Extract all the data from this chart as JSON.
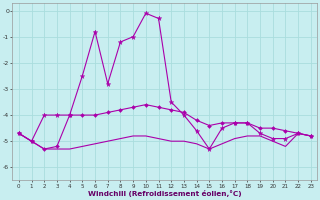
{
  "x": [
    0,
    1,
    2,
    3,
    4,
    5,
    6,
    7,
    8,
    9,
    10,
    11,
    12,
    13,
    14,
    15,
    16,
    17,
    18,
    19,
    20,
    21,
    22,
    23
  ],
  "line1": [
    -4.7,
    -5.0,
    -4.0,
    -4.0,
    -4.0,
    -2.5,
    -0.8,
    -2.8,
    -1.2,
    -1.0,
    -0.1,
    -0.3,
    -3.5,
    -4.0,
    -4.6,
    -5.3,
    -4.5,
    -4.3,
    -4.3,
    -4.7,
    -4.9,
    -4.9,
    -4.7,
    -4.8
  ],
  "line2": [
    -4.7,
    -5.0,
    -5.3,
    -5.2,
    -4.0,
    -4.0,
    -4.0,
    -3.9,
    -3.8,
    -3.7,
    -3.6,
    -3.7,
    -3.8,
    -3.9,
    -4.2,
    -4.4,
    -4.3,
    -4.3,
    -4.3,
    -4.5,
    -4.5,
    -4.6,
    -4.7,
    -4.8
  ],
  "line3": [
    -4.7,
    -5.0,
    -5.3,
    -5.3,
    -5.3,
    -5.2,
    -5.1,
    -5.0,
    -4.9,
    -4.8,
    -4.8,
    -4.9,
    -5.0,
    -5.0,
    -5.1,
    -5.3,
    -5.1,
    -4.9,
    -4.8,
    -4.8,
    -5.0,
    -5.2,
    -4.7,
    -4.8
  ],
  "bg_color": "#c8eef0",
  "grid_color": "#aadddd",
  "line_color": "#aa00aa",
  "xlabel": "Windchill (Refroidissement éolien,°C)",
  "ylim": [
    -6.5,
    0.3
  ],
  "xlim": [
    -0.5,
    23.5
  ],
  "yticks": [
    0,
    -1,
    -2,
    -3,
    -4,
    -5,
    -6
  ],
  "xticks": [
    0,
    1,
    2,
    3,
    4,
    5,
    6,
    7,
    8,
    9,
    10,
    11,
    12,
    13,
    14,
    15,
    16,
    17,
    18,
    19,
    20,
    21,
    22,
    23
  ],
  "tick_fontsize": 4.0,
  "xlabel_fontsize": 5.2
}
